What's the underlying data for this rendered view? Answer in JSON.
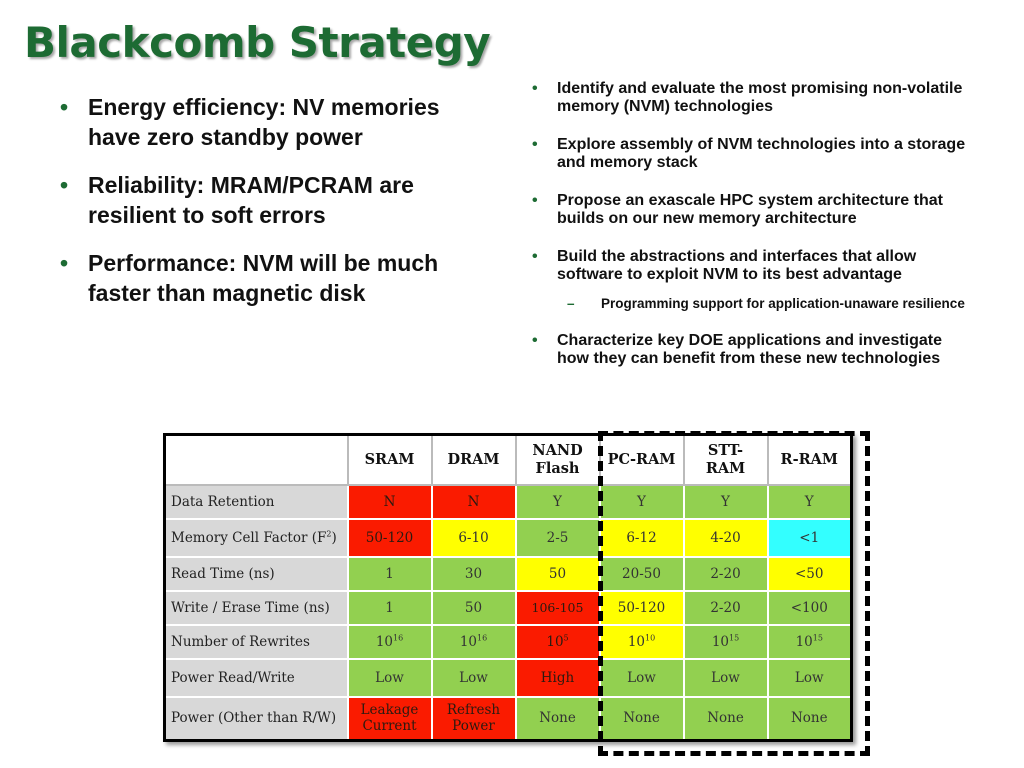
{
  "title": "Blackcomb Strategy",
  "left_bullets": [
    "Energy efficiency: NV memories have zero standby power",
    "Reliability: MRAM/PCRAM are resilient to soft errors",
    "Performance: NVM will be much faster than magnetic disk"
  ],
  "right_bullets": [
    "Identify and evaluate the most promising non-volatile memory (NVM) technologies",
    "Explore assembly of NVM technologies into a storage and memory stack",
    "Propose an exascale HPC system architecture that builds on our new memory architecture",
    "Build the abstractions and interfaces that allow software to exploit NVM to its best advantage",
    "Characterize key DOE applications and investigate how they can benefit from these new technologies"
  ],
  "sub_bullets": [
    "Programming support for application-unaware resilience"
  ],
  "table": {
    "headers": [
      "SRAM",
      "DRAM",
      "NAND Flash",
      "PC-RAM",
      "STT-RAM",
      "R-RAM"
    ],
    "rows": [
      {
        "label": "Data Retention",
        "cells": [
          {
            "text": "N",
            "color": "red"
          },
          {
            "text": "N",
            "color": "red"
          },
          {
            "text": "Y",
            "color": "green"
          },
          {
            "text": "Y",
            "color": "green"
          },
          {
            "text": "Y",
            "color": "green"
          },
          {
            "text": "Y",
            "color": "green"
          }
        ]
      },
      {
        "label": "Memory Cell Factor (F",
        "label_sup": "2",
        "label_suffix": ")",
        "cells": [
          {
            "text": "50-120",
            "color": "red"
          },
          {
            "text": "6-10",
            "color": "yellow"
          },
          {
            "text": "2-5",
            "color": "green"
          },
          {
            "text": "6-12",
            "color": "yellow"
          },
          {
            "text": "4-20",
            "color": "yellow"
          },
          {
            "text": "<1",
            "color": "cyan"
          }
        ]
      },
      {
        "label": "Read Time (ns)",
        "cells": [
          {
            "text": "1",
            "color": "green"
          },
          {
            "text": "30",
            "color": "green"
          },
          {
            "text": "50",
            "color": "yellow"
          },
          {
            "text": "20-50",
            "color": "green"
          },
          {
            "text": "2-20",
            "color": "green"
          },
          {
            "text": "<50",
            "color": "yellow"
          }
        ]
      },
      {
        "label": "Write / Erase Time (ns)",
        "cells": [
          {
            "text": "1",
            "color": "green"
          },
          {
            "text": "50",
            "color": "green"
          },
          {
            "text": "10",
            "sup": "6",
            "prefix": "",
            "color": "red",
            "full": "106-105"
          },
          {
            "text": "50-120",
            "color": "yellow"
          },
          {
            "text": "2-20",
            "color": "green"
          },
          {
            "text": "<100",
            "color": "green"
          }
        ]
      },
      {
        "label": "Number of Rewrites",
        "cells": [
          {
            "text": "10",
            "sup": "16",
            "color": "green"
          },
          {
            "text": "10",
            "sup": "16",
            "color": "green"
          },
          {
            "text": "10",
            "sup": "5",
            "color": "red"
          },
          {
            "text": "10",
            "sup": "10",
            "color": "yellow"
          },
          {
            "text": "10",
            "sup": "15",
            "color": "green"
          },
          {
            "text": "10",
            "sup": "15",
            "color": "green"
          }
        ]
      },
      {
        "label": "Power Read/Write",
        "cells": [
          {
            "text": "Low",
            "color": "green"
          },
          {
            "text": "Low",
            "color": "green"
          },
          {
            "text": "High",
            "color": "red"
          },
          {
            "text": "Low",
            "color": "green"
          },
          {
            "text": "Low",
            "color": "green"
          },
          {
            "text": "Low",
            "color": "green"
          }
        ]
      },
      {
        "label": "Power (Other than R/W)",
        "cells": [
          {
            "text": "Leakage Current",
            "color": "red"
          },
          {
            "text": "Refresh Power",
            "color": "red"
          },
          {
            "text": "None",
            "color": "green"
          },
          {
            "text": "None",
            "color": "green"
          },
          {
            "text": "None",
            "color": "green"
          },
          {
            "text": "None",
            "color": "green"
          }
        ]
      }
    ]
  },
  "colors": {
    "title_green": "#1d6b33",
    "red": "#fa1b00",
    "yellow": "#ffff00",
    "green": "#92d050",
    "cyan": "#33ffff",
    "row_header_gray": "#d8d8d8"
  }
}
